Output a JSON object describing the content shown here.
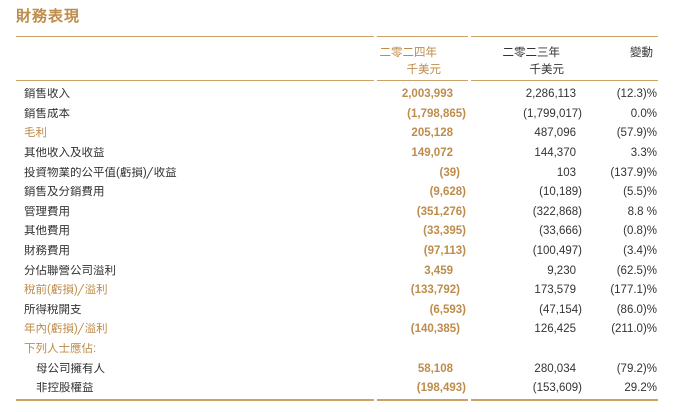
{
  "page": {
    "title": "財務表現",
    "accent_color": "#BE8C4B",
    "rule_color": "#CBA266",
    "text_color": "#333333"
  },
  "table": {
    "header": {
      "col_2024": {
        "year": "二零二四年",
        "unit": "千美元"
      },
      "col_2023": {
        "year": "二零二三年",
        "unit": "千美元"
      },
      "col_change": {
        "label": "變動"
      }
    },
    "rows": [
      {
        "label": "銷售收入",
        "v2024": "2,003,993",
        "v2023": "2,286,113",
        "change": "(12.3)%",
        "gold": false,
        "indent": false
      },
      {
        "label": "銷售成本",
        "v2024": "(1,798,865)",
        "v2023": "(1,799,017)",
        "change": "0.0%",
        "gold": false,
        "indent": false
      },
      {
        "label": "毛利",
        "v2024": "205,128",
        "v2023": "487,096",
        "change": "(57.9)%",
        "gold": true,
        "indent": false
      },
      {
        "label": "其他收入及收益",
        "v2024": "149,072",
        "v2023": "144,370",
        "change": "3.3%",
        "gold": false,
        "indent": false
      },
      {
        "label": "投資物業的公平值(虧損)╱收益",
        "v2024": "(39)",
        "v2023": "103",
        "change": "(137.9)%",
        "gold": false,
        "indent": false
      },
      {
        "label": "銷售及分銷費用",
        "v2024": "(9,628)",
        "v2023": "(10,189)",
        "change": "(5.5)%",
        "gold": false,
        "indent": false
      },
      {
        "label": "管理費用",
        "v2024": "(351,276)",
        "v2023": "(322,868)",
        "change": "8.8 %",
        "gold": false,
        "indent": false
      },
      {
        "label": "其他費用",
        "v2024": "(33,395)",
        "v2023": "(33,666)",
        "change": "(0.8)%",
        "gold": false,
        "indent": false
      },
      {
        "label": "財務費用",
        "v2024": "(97,113)",
        "v2023": "(100,497)",
        "change": "(3.4)%",
        "gold": false,
        "indent": false
      },
      {
        "label": "分佔聯營公司溢利",
        "v2024": "3,459",
        "v2023": "9,230",
        "change": "(62.5)%",
        "gold": false,
        "indent": false
      },
      {
        "label": "稅前(虧損)╱溢利",
        "v2024": "(133,792)",
        "v2023": "173,579",
        "change": "(177.1)%",
        "gold": true,
        "indent": false
      },
      {
        "label": "所得稅開支",
        "v2024": "(6,593)",
        "v2023": "(47,154)",
        "change": "(86.0)%",
        "gold": false,
        "indent": false
      },
      {
        "label": "年內(虧損)╱溢利",
        "v2024": "(140,385)",
        "v2023": "126,425",
        "change": "(211.0)%",
        "gold": true,
        "indent": false
      },
      {
        "label": "下列人士應佔:",
        "v2024": "",
        "v2023": "",
        "change": "",
        "gold": true,
        "indent": false
      },
      {
        "label": "母公司擁有人",
        "v2024": "58,108",
        "v2023": "280,034",
        "change": "(79.2)%",
        "gold": false,
        "indent": true
      },
      {
        "label": "非控股權益",
        "v2024": "(198,493)",
        "v2023": "(153,609)",
        "change": "29.2%",
        "gold": false,
        "indent": true
      }
    ]
  }
}
